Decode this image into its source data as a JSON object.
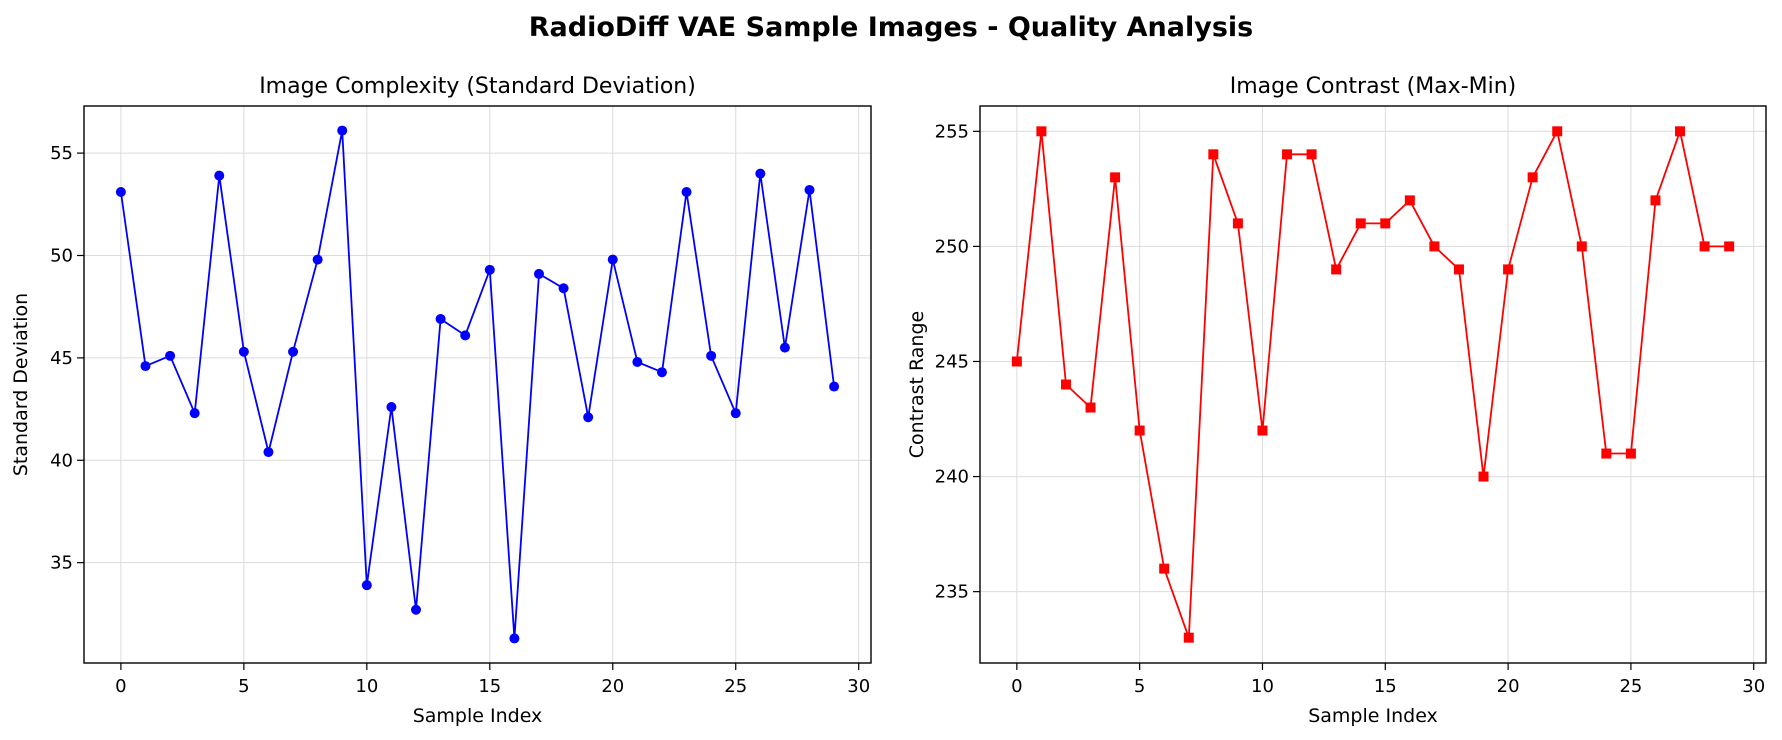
{
  "figure": {
    "suptitle": "RadioDiff VAE Sample Images - Quality Analysis"
  },
  "chart_data": [
    {
      "type": "line",
      "title": "Image Complexity (Standard Deviation)",
      "xlabel": "Sample Index",
      "ylabel": "Standard Deviation",
      "xlim": [
        -1.5,
        30.5
      ],
      "ylim": [
        30.1,
        57.3
      ],
      "xticks": [
        0,
        5,
        10,
        15,
        20,
        25,
        30
      ],
      "yticks": [
        35,
        40,
        45,
        50,
        55
      ],
      "grid": true,
      "color": "#0000ff",
      "marker": "circle",
      "x": [
        0,
        1,
        2,
        3,
        4,
        5,
        6,
        7,
        8,
        9,
        10,
        11,
        12,
        13,
        14,
        15,
        16,
        17,
        18,
        19,
        20,
        21,
        22,
        23,
        24,
        25,
        26,
        27,
        28,
        29
      ],
      "values": [
        53.1,
        44.6,
        45.1,
        42.3,
        53.9,
        45.3,
        40.4,
        45.3,
        49.8,
        56.1,
        33.9,
        42.6,
        32.7,
        46.9,
        46.1,
        49.3,
        31.3,
        49.1,
        48.4,
        42.1,
        49.8,
        44.8,
        44.3,
        53.1,
        45.1,
        42.3,
        54.0,
        45.5,
        53.2,
        43.6
      ]
    },
    {
      "type": "line",
      "title": "Image Contrast (Max-Min)",
      "xlabel": "Sample Index",
      "ylabel": "Contrast Range",
      "xlim": [
        -1.5,
        30.5
      ],
      "ylim": [
        231.9,
        256.1
      ],
      "xticks": [
        0,
        5,
        10,
        15,
        20,
        25,
        30
      ],
      "yticks": [
        235,
        240,
        245,
        250,
        255
      ],
      "grid": true,
      "color": "#ff0000",
      "marker": "square",
      "x": [
        0,
        1,
        2,
        3,
        4,
        5,
        6,
        7,
        8,
        9,
        10,
        11,
        12,
        13,
        14,
        15,
        16,
        17,
        18,
        19,
        20,
        21,
        22,
        23,
        24,
        25,
        26,
        27,
        28,
        29
      ],
      "values": [
        245,
        255,
        244,
        243,
        253,
        242,
        236,
        233,
        254,
        251,
        242,
        254,
        254,
        249,
        251,
        251,
        252,
        250,
        249,
        240,
        249,
        253,
        255,
        250,
        241,
        241,
        252,
        255,
        250,
        250
      ]
    }
  ]
}
